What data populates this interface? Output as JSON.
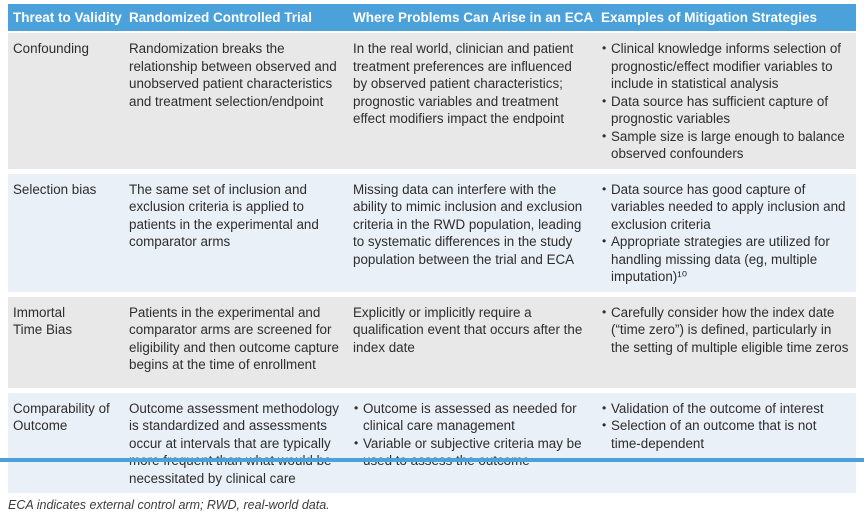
{
  "colors": {
    "header_bg": "#4BA1D9",
    "header_text": "#FFFFFF",
    "row_gray": "#E8E8E8",
    "row_blue": "#EAF0F7",
    "accent": "#4BA1D9"
  },
  "table": {
    "headers": [
      "Threat to Validity",
      "Randomized Controlled Trial",
      "Where Problems Can Arise in an ECA",
      "Examples of Mitigation Strategies"
    ],
    "rows": [
      {
        "threat": "Confounding",
        "rct": {
          "text": "Randomization breaks the relationship between observed and unobserved patient characteristics and treatment selection/endpoint"
        },
        "eca": {
          "text": "In the real world, clinician and patient treatment preferences are influenced by observed patient characteristics; prognostic variables and treatment effect modifiers impact the endpoint"
        },
        "mitigation": {
          "bullets": [
            "Clinical knowledge informs selection of prognostic/effect modifier variables to include in statistical analysis",
            "Data source has sufficient capture of prognostic variables",
            "Sample size is large enough to balance observed confounders"
          ]
        }
      },
      {
        "threat": "Selection bias",
        "rct": {
          "text": "The same set of inclusion and exclusion criteria is applied to patients in the experimental and comparator arms"
        },
        "eca": {
          "text": "Missing data can interfere with the ability to mimic inclusion and exclusion criteria in the RWD population, leading to systematic differences in the study population between the trial and ECA"
        },
        "mitigation": {
          "bullets": [
            "Data source has good capture of variables needed to apply inclusion and exclusion criteria",
            "Appropriate strategies are utilized for handling missing data (eg, multiple imputation)¹⁰"
          ]
        }
      },
      {
        "threat": "Immortal\nTime Bias",
        "rct": {
          "text": "Patients in the experimental and comparator arms are screened for eligibility and then outcome capture begins at the time of enrollment"
        },
        "eca": {
          "text": "Explicitly or implicitly require a qualification event that occurs after the index date"
        },
        "mitigation": {
          "bullets": [
            "Carefully consider how the index date (“time zero”) is defined, particularly in the setting of multiple eligible time zeros"
          ]
        }
      },
      {
        "threat": "Comparability of\nOutcome",
        "rct": {
          "text": "Outcome assessment methodology is standardized and assessments occur at intervals that are typically more frequent than what would be necessitated by clinical care"
        },
        "eca": {
          "bullets": [
            "Outcome is assessed as needed for clinical care management",
            "Variable or subjective criteria may be used to assess the outcome"
          ]
        },
        "mitigation": {
          "bullets": [
            "Validation of the outcome of interest",
            "Selection of an outcome that is not time-dependent"
          ]
        }
      }
    ]
  },
  "footnote": "ECA indicates external control arm; RWD, real-world data."
}
